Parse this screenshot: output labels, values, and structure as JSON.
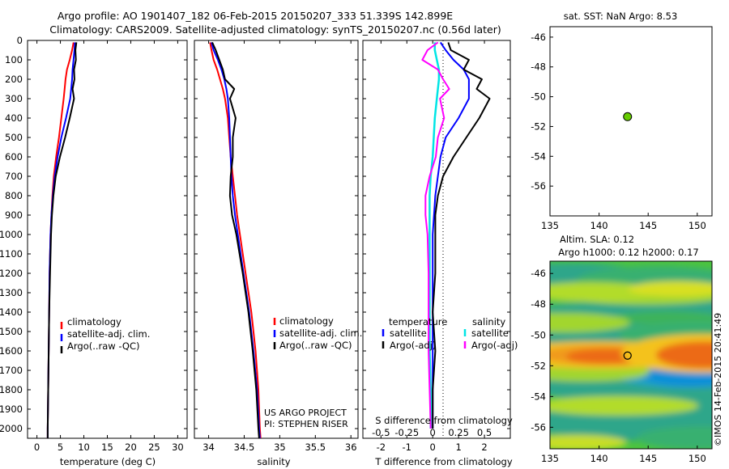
{
  "figure": {
    "title_line1": "Argo profile: AO 1901407_182 06-Feb-2015 20150207_333 51.339S 142.899E",
    "title_line2": "Climatology: CARS2009. Satellite-adjusted climatology: synTS_20150207.nc (0.56d later)",
    "watermark": "©IMOS 14-Feb-2015 20:41:49",
    "project_line1": "US ARGO PROJECT",
    "project_line2": "PI: STEPHEN RISER"
  },
  "colors": {
    "climatology": "#ff0000",
    "satellite": "#0000ff",
    "argo": "#000000",
    "sal_satellite": "#00e5e5",
    "sal_argo": "#ff00ff",
    "position_marker": "#66cc00"
  },
  "legends": {
    "temp": [
      "climatology",
      "satellite-adj. clim.",
      "Argo(..raw -QC)"
    ],
    "sal": [
      "climatology",
      "satellite-adj. clim.",
      "Argo(..raw -QC)"
    ],
    "diff_head_t": "temperature",
    "diff_head_s": "salinity",
    "diff_t": [
      "satellite",
      "Argo(-adj)"
    ],
    "diff_s": [
      "satellite",
      "Argo(-adj)"
    ]
  },
  "chart_data": [
    {
      "type": "line",
      "id": "temperature",
      "xlabel": "temperature (deg C)",
      "ylabel": "",
      "xlim": [
        -2,
        32
      ],
      "ylim": [
        2050,
        0
      ],
      "x_ticks": [
        "0",
        "5",
        "10",
        "15",
        "20",
        "25",
        "30"
      ],
      "y_ticks": [
        "0",
        "100",
        "200",
        "300",
        "400",
        "500",
        "600",
        "700",
        "800",
        "900",
        "1000",
        "1100",
        "1200",
        "1300",
        "1400",
        "1500",
        "1600",
        "1700",
        "1800",
        "1900",
        "2000"
      ],
      "depth": [
        10,
        50,
        100,
        150,
        200,
        250,
        300,
        400,
        500,
        600,
        700,
        800,
        900,
        1000,
        1200,
        1400,
        1600,
        1800,
        2000,
        2050
      ],
      "series": [
        {
          "name": "climatology",
          "values": [
            7.8,
            7.5,
            7.0,
            6.4,
            6.1,
            5.9,
            5.7,
            5.2,
            4.7,
            4.1,
            3.6,
            3.3,
            3.1,
            2.9,
            2.7,
            2.6,
            2.5,
            2.4,
            2.3,
            2.3
          ]
        },
        {
          "name": "satellite-adj. clim.",
          "values": [
            8.1,
            8.0,
            7.8,
            7.6,
            7.5,
            7.3,
            7.1,
            6.2,
            5.2,
            4.4,
            3.8,
            3.4,
            3.1,
            2.9,
            2.7,
            2.6,
            2.5,
            2.4,
            2.3,
            2.3
          ]
        },
        {
          "name": "Argo(..raw -QC)",
          "values": [
            8.4,
            8.2,
            8.3,
            7.9,
            8.0,
            7.6,
            7.9,
            7.0,
            6.0,
            4.9,
            4.0,
            3.5,
            3.2,
            3.0,
            2.8,
            2.6,
            2.5,
            2.4,
            2.3,
            2.3
          ]
        }
      ]
    },
    {
      "type": "line",
      "id": "salinity",
      "xlabel": "salinity",
      "xlim": [
        33.8,
        36.1
      ],
      "ylim": [
        2050,
        0
      ],
      "x_ticks": [
        "34",
        "34.5",
        "35",
        "35.5",
        "36"
      ],
      "depth": [
        10,
        50,
        100,
        150,
        200,
        250,
        300,
        400,
        500,
        600,
        700,
        800,
        900,
        1000,
        1200,
        1400,
        1600,
        1800,
        2000,
        2050
      ],
      "series": [
        {
          "name": "climatology",
          "values": [
            34.02,
            34.04,
            34.07,
            34.12,
            34.16,
            34.2,
            34.23,
            34.27,
            34.29,
            34.31,
            34.34,
            34.37,
            34.4,
            34.44,
            34.52,
            34.6,
            34.66,
            34.7,
            34.72,
            34.73
          ]
        },
        {
          "name": "satellite-adj. clim.",
          "values": [
            34.04,
            34.07,
            34.13,
            34.18,
            34.22,
            34.25,
            34.27,
            34.29,
            34.3,
            34.31,
            34.32,
            34.34,
            34.37,
            34.41,
            34.49,
            34.57,
            34.63,
            34.68,
            34.71,
            34.72
          ]
        },
        {
          "name": "Argo(..raw -QC)",
          "values": [
            34.05,
            34.1,
            34.15,
            34.2,
            34.23,
            34.36,
            34.3,
            34.38,
            34.34,
            34.34,
            34.31,
            34.3,
            34.33,
            34.39,
            34.48,
            34.56,
            34.62,
            34.67,
            34.7,
            34.71
          ]
        }
      ]
    },
    {
      "type": "line",
      "id": "differences",
      "xlabel": "T difference from climatology",
      "xlabel_top": "S difference from climatology",
      "xlim": [
        -2.7,
        3.0
      ],
      "ylim": [
        2050,
        0
      ],
      "x_ticks": [
        "-2",
        "-1",
        "0",
        "1",
        "2"
      ],
      "x_ticks_top": [
        "-0.5",
        "-0.25",
        "0",
        "0.25",
        "0.5"
      ],
      "depth": [
        10,
        50,
        100,
        150,
        200,
        250,
        300,
        400,
        500,
        600,
        700,
        800,
        900,
        1000,
        1200,
        1400,
        1600,
        1800,
        2000
      ],
      "series": [
        {
          "name": "temperature satellite",
          "values": [
            0.3,
            0.5,
            0.8,
            1.2,
            1.4,
            1.4,
            1.4,
            1.0,
            0.5,
            0.3,
            0.2,
            0.1,
            0.05,
            0.0,
            0.0,
            0.0,
            0.0,
            0.0,
            0.0
          ]
        },
        {
          "name": "temperature Argo(-adj)",
          "values": [
            0.6,
            0.7,
            1.4,
            1.2,
            1.9,
            1.7,
            2.2,
            1.8,
            1.3,
            0.8,
            0.4,
            0.2,
            0.1,
            0.1,
            0.1,
            0.0,
            0.1,
            0.0,
            0.0
          ]
        },
        {
          "name": "salinity satellite",
          "values": [
            0.02,
            0.02,
            0.04,
            0.06,
            0.06,
            0.05,
            0.04,
            0.02,
            0.01,
            0.0,
            -0.02,
            -0.03,
            -0.03,
            -0.03,
            -0.03,
            -0.03,
            -0.03,
            -0.02,
            -0.02
          ]
        },
        {
          "name": "salinity Argo(-adj)",
          "values": [
            0.05,
            -0.05,
            -0.1,
            0.05,
            0.1,
            0.16,
            0.07,
            0.11,
            0.05,
            0.03,
            -0.03,
            -0.07,
            -0.07,
            -0.05,
            -0.04,
            -0.04,
            -0.04,
            -0.03,
            -0.02
          ]
        }
      ]
    },
    {
      "type": "scatter",
      "id": "location",
      "title": "sat. SST: NaN Argo: 8.53",
      "xlim": [
        135,
        151.5
      ],
      "ylim": [
        -58,
        -45.3
      ],
      "x_ticks": [
        "135",
        "140",
        "145",
        "150"
      ],
      "y_ticks": [
        "-46",
        "-48",
        "-50",
        "-52",
        "-54",
        "-56"
      ],
      "points": [
        {
          "x": 142.899,
          "y": -51.339
        }
      ]
    },
    {
      "type": "heatmap",
      "id": "sla",
      "title_line1": "Altim. SLA: 0.12",
      "title_line2": "Argo h1000: 0.12 h2000: 0.17",
      "xlim": [
        135,
        151.5
      ],
      "ylim": [
        -57.4,
        -45.2
      ],
      "x_ticks": [
        "135",
        "140",
        "145",
        "150"
      ],
      "y_ticks": [
        "-46",
        "-48",
        "-50",
        "-52",
        "-54",
        "-56"
      ],
      "points": [
        {
          "x": 142.899,
          "y": -51.339
        }
      ]
    }
  ]
}
